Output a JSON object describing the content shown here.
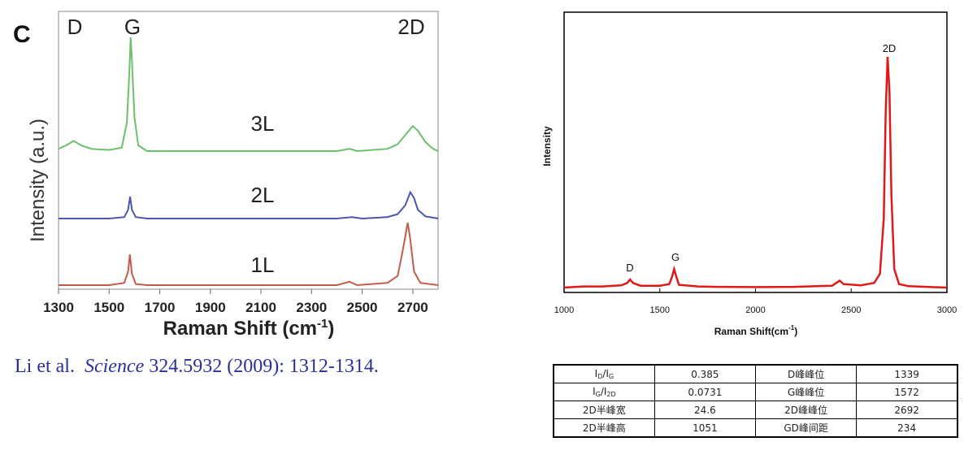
{
  "chart_data": [
    {
      "type": "line",
      "panel_label": "C",
      "peak_labels": [
        "D",
        "G",
        "2D"
      ],
      "xlabel_text": "Raman Shift (cm",
      "xlabel_sup": "-1",
      "xlabel_close": ")",
      "ylabel": "Intensity (a.u.)",
      "xlim": [
        1300,
        2800
      ],
      "xticks": [
        "1300",
        "1500",
        "1700",
        "1900",
        "2100",
        "2300",
        "2500",
        "2700"
      ],
      "series": [
        {
          "name": "3L",
          "color": "#6cbf6c",
          "points": [
            [
              1300,
              0.02
            ],
            [
              1330,
              0.05
            ],
            [
              1360,
              0.09
            ],
            [
              1390,
              0.05
            ],
            [
              1430,
              0.02
            ],
            [
              1500,
              0.01
            ],
            [
              1550,
              0.03
            ],
            [
              1570,
              0.25
            ],
            [
              1580,
              0.7
            ],
            [
              1585,
              1.0
            ],
            [
              1590,
              0.8
            ],
            [
              1600,
              0.3
            ],
            [
              1615,
              0.05
            ],
            [
              1650,
              0.0
            ],
            [
              1800,
              0.0
            ],
            [
              2000,
              0.0
            ],
            [
              2200,
              0.0
            ],
            [
              2400,
              0.0
            ],
            [
              2450,
              0.02
            ],
            [
              2480,
              0.0
            ],
            [
              2600,
              0.02
            ],
            [
              2640,
              0.06
            ],
            [
              2670,
              0.14
            ],
            [
              2700,
              0.22
            ],
            [
              2720,
              0.18
            ],
            [
              2750,
              0.08
            ],
            [
              2780,
              0.02
            ],
            [
              2800,
              0.0
            ]
          ]
        },
        {
          "name": "2L",
          "color": "#4b56b0",
          "points": [
            [
              1300,
              0.0
            ],
            [
              1400,
              0.0
            ],
            [
              1500,
              0.0
            ],
            [
              1560,
              0.02
            ],
            [
              1575,
              0.12
            ],
            [
              1583,
              0.3
            ],
            [
              1590,
              0.12
            ],
            [
              1605,
              0.02
            ],
            [
              1650,
              0.0
            ],
            [
              1900,
              0.0
            ],
            [
              2200,
              0.0
            ],
            [
              2400,
              0.0
            ],
            [
              2460,
              0.02
            ],
            [
              2500,
              0.0
            ],
            [
              2600,
              0.02
            ],
            [
              2640,
              0.06
            ],
            [
              2670,
              0.18
            ],
            [
              2690,
              0.36
            ],
            [
              2705,
              0.28
            ],
            [
              2720,
              0.12
            ],
            [
              2750,
              0.03
            ],
            [
              2800,
              0.0
            ]
          ]
        },
        {
          "name": "1L",
          "color": "#c35a4a",
          "points": [
            [
              1300,
              0.0
            ],
            [
              1400,
              0.0
            ],
            [
              1500,
              0.0
            ],
            [
              1560,
              0.02
            ],
            [
              1575,
              0.12
            ],
            [
              1582,
              0.27
            ],
            [
              1590,
              0.1
            ],
            [
              1605,
              0.01
            ],
            [
              1650,
              0.0
            ],
            [
              1900,
              0.0
            ],
            [
              2200,
              0.0
            ],
            [
              2400,
              0.0
            ],
            [
              2450,
              0.03
            ],
            [
              2480,
              0.0
            ],
            [
              2600,
              0.02
            ],
            [
              2640,
              0.08
            ],
            [
              2660,
              0.3
            ],
            [
              2680,
              0.55
            ],
            [
              2690,
              0.4
            ],
            [
              2705,
              0.12
            ],
            [
              2730,
              0.02
            ],
            [
              2800,
              0.0
            ]
          ]
        }
      ]
    },
    {
      "type": "line",
      "xlabel_text": "Raman Shift(cm",
      "xlabel_sup": "-1",
      "xlabel_close": ")",
      "ylabel": "Intensity",
      "xlim": [
        1000,
        3000
      ],
      "xticks": [
        "1000",
        "1500",
        "2000",
        "2500",
        "3000"
      ],
      "annotations": [
        "D",
        "G",
        "2D"
      ],
      "series": [
        {
          "color": "#e01818",
          "points": [
            [
              1000,
              0.0
            ],
            [
              1100,
              0.005
            ],
            [
              1200,
              0.005
            ],
            [
              1300,
              0.01
            ],
            [
              1330,
              0.02
            ],
            [
              1345,
              0.035
            ],
            [
              1360,
              0.02
            ],
            [
              1400,
              0.008
            ],
            [
              1500,
              0.008
            ],
            [
              1550,
              0.015
            ],
            [
              1565,
              0.05
            ],
            [
              1575,
              0.08
            ],
            [
              1585,
              0.05
            ],
            [
              1600,
              0.012
            ],
            [
              1700,
              0.005
            ],
            [
              1800,
              0.003
            ],
            [
              2000,
              0.002
            ],
            [
              2200,
              0.003
            ],
            [
              2400,
              0.008
            ],
            [
              2440,
              0.03
            ],
            [
              2460,
              0.015
            ],
            [
              2550,
              0.01
            ],
            [
              2620,
              0.02
            ],
            [
              2650,
              0.06
            ],
            [
              2670,
              0.3
            ],
            [
              2680,
              0.75
            ],
            [
              2690,
              1.0
            ],
            [
              2700,
              0.85
            ],
            [
              2710,
              0.4
            ],
            [
              2725,
              0.08
            ],
            [
              2750,
              0.015
            ],
            [
              2800,
              0.006
            ],
            [
              3000,
              0.0
            ]
          ]
        }
      ]
    }
  ],
  "citation": {
    "authors": "Li et al.",
    "journal": "Science",
    "details": "324.5932  (2009): 1312-1314."
  },
  "table": {
    "rows": [
      [
        {
          "main": "I",
          "sub": "D"
        },
        {
          "main": "/I",
          "sub": "G"
        },
        "0.385",
        "D峰峰位",
        "1339"
      ],
      [
        {
          "main": "I",
          "sub": "G"
        },
        {
          "main": "/I",
          "sub": "2D"
        },
        "0.0731",
        "G峰峰位",
        "1572"
      ],
      [
        "2D半峰宽",
        "24.6",
        "2D峰峰位",
        "2692"
      ],
      [
        "2D半峰高",
        "1051",
        "GD峰间距",
        "234"
      ]
    ]
  }
}
